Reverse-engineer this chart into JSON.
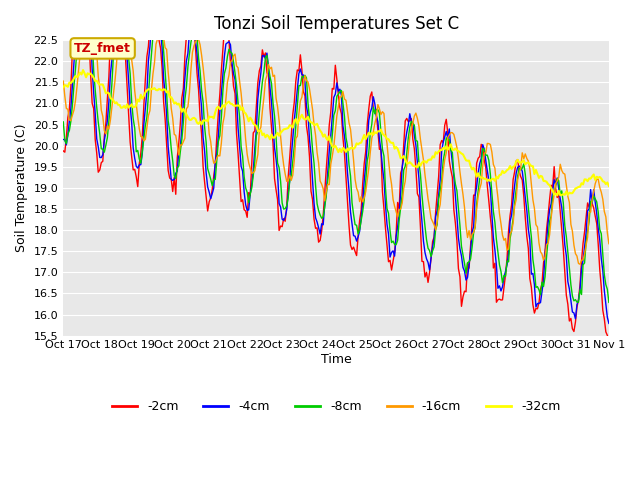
{
  "title": "Tonzi Soil Temperatures Set C",
  "xlabel": "Time",
  "ylabel": "Soil Temperature (C)",
  "ylim": [
    15.5,
    22.5
  ],
  "annotation_label": "TZ_fmet",
  "annotation_color": "#cc0000",
  "annotation_bg": "#ffffcc",
  "annotation_border": "#ccaa00",
  "plot_bg": "#e8e8e8",
  "grid_color": "#ffffff",
  "series": [
    {
      "label": "-2cm",
      "color": "#ff0000"
    },
    {
      "label": "-4cm",
      "color": "#0000ff"
    },
    {
      "label": "-8cm",
      "color": "#00cc00"
    },
    {
      "label": "-16cm",
      "color": "#ff9900"
    },
    {
      "label": "-32cm",
      "color": "#ffff00"
    }
  ],
  "x_tick_labels": [
    "Oct 17",
    "Oct 18",
    "Oct 19",
    "Oct 20",
    "Oct 21",
    "Oct 22",
    "Oct 23",
    "Oct 24",
    "Oct 25",
    "Oct 26",
    "Oct 27",
    "Oct 28",
    "Oct 29",
    "Oct 30",
    "Oct 31",
    "Nov 1"
  ],
  "n_days": 15,
  "points_per_day": 24
}
